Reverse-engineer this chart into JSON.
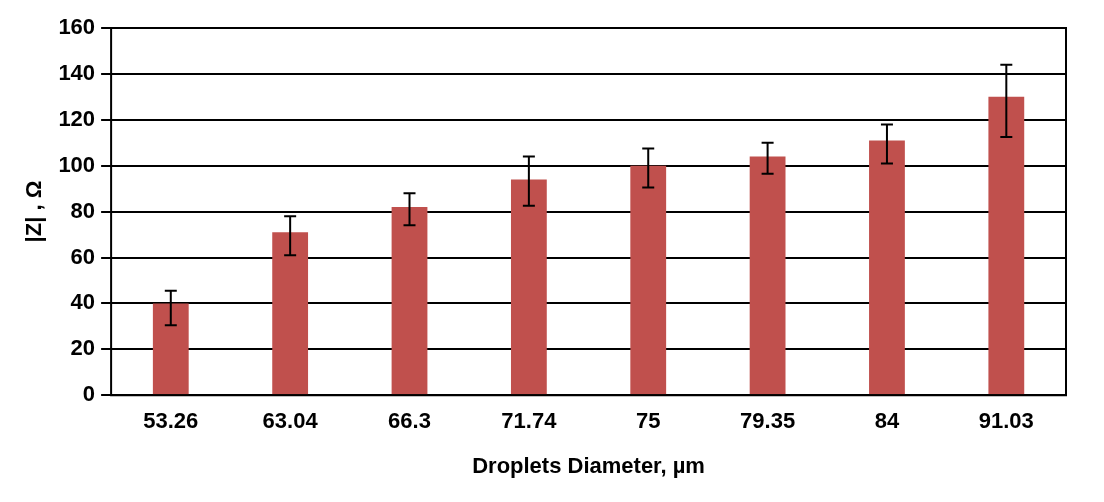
{
  "chart_data": {
    "type": "bar",
    "xlabel": "Droplets Diameter, µm",
    "ylabel": "|Z| , Ω",
    "categories": [
      "53.26",
      "63.04",
      "66.3",
      "71.74",
      "75",
      "79.35",
      "84",
      "91.03"
    ],
    "values": [
      40,
      71,
      82,
      94,
      100,
      104,
      111,
      130
    ],
    "errors": [
      [
        30.5,
        45.5
      ],
      [
        61,
        78
      ],
      [
        74,
        88
      ],
      [
        82.5,
        104
      ],
      [
        90.5,
        107.5
      ],
      [
        96.5,
        110
      ],
      [
        101,
        118
      ],
      [
        112.5,
        144
      ]
    ],
    "color": "#c0504d",
    "ylim": [
      0,
      160
    ],
    "yticks": [
      0,
      20,
      40,
      60,
      80,
      100,
      120,
      140,
      160
    ],
    "grid": "y",
    "legend": false
  }
}
